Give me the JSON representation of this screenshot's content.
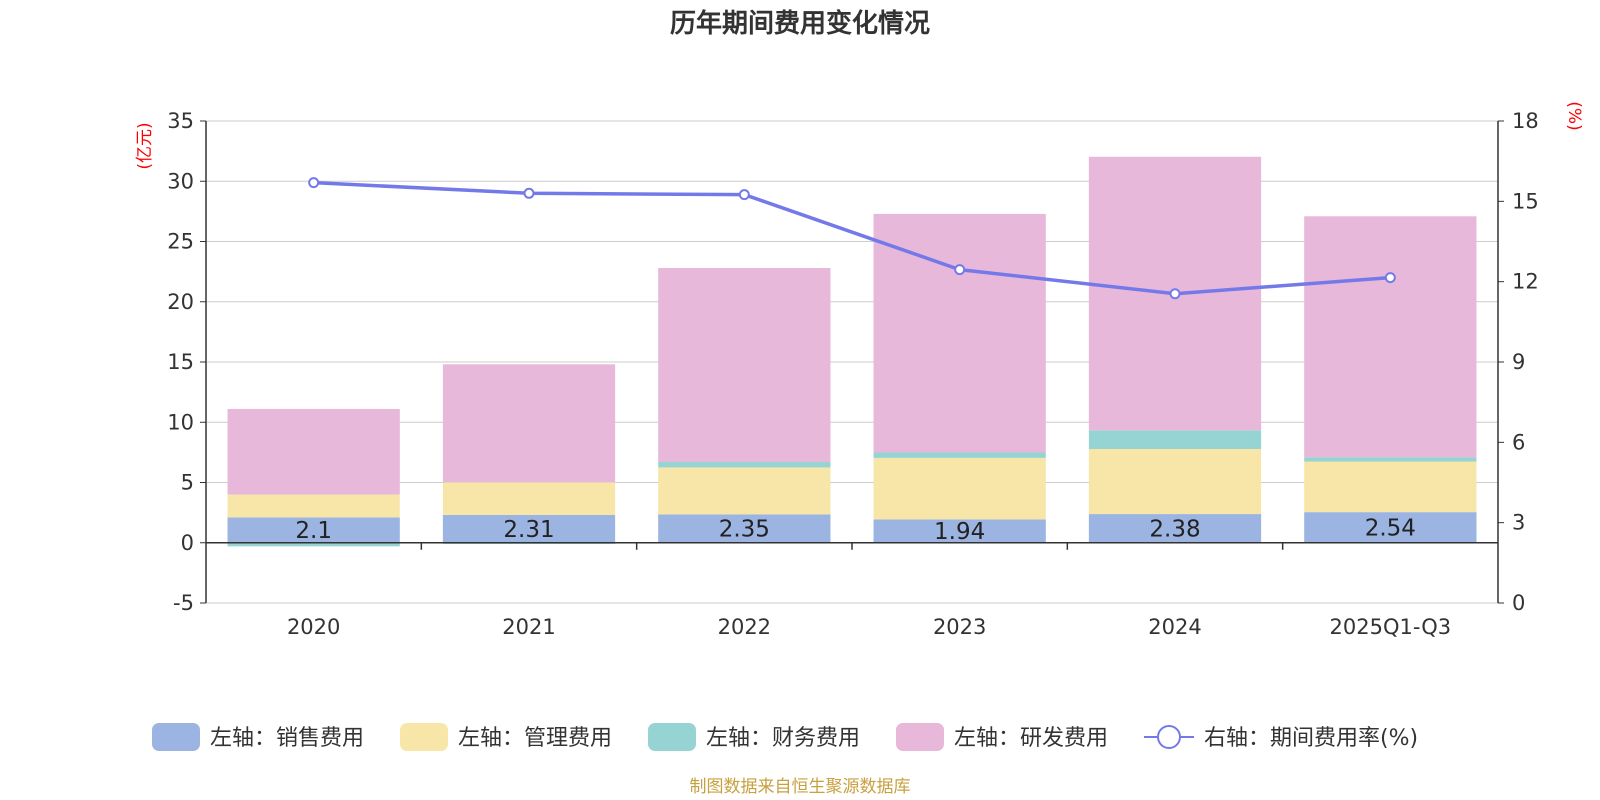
{
  "title": "历年期间费用变化情况",
  "source": "制图数据来自恒生聚源数据库",
  "chart_data": {
    "type": "bar",
    "stacked": true,
    "categories": [
      "2020",
      "2021",
      "2022",
      "2023",
      "2024",
      "2025Q1-Q3"
    ],
    "left_axis": {
      "unit": "(亿元)",
      "min": -5,
      "max": 35,
      "step": 5,
      "ticks": [
        "-5",
        "0",
        "5",
        "10",
        "15",
        "20",
        "25",
        "30",
        "35"
      ]
    },
    "right_axis": {
      "unit": "(%)",
      "min": 0,
      "max": 18,
      "step": 3,
      "ticks": [
        "0",
        "3",
        "6",
        "9",
        "12",
        "15",
        "18"
      ]
    },
    "series": [
      {
        "name": "左轴：销售费用",
        "axis": "left",
        "color": "#9bb4e1",
        "values": [
          2.1,
          2.31,
          2.35,
          1.94,
          2.38,
          2.54
        ],
        "labels": [
          "2.1",
          "2.31",
          "2.35",
          "1.94",
          "2.38",
          "2.54"
        ]
      },
      {
        "name": "左轴：管理费用",
        "axis": "left",
        "color": "#f7e6a8",
        "values": [
          1.9,
          2.7,
          3.9,
          5.1,
          5.4,
          4.2
        ]
      },
      {
        "name": "左轴：财务费用",
        "axis": "left",
        "color": "#96d4d3",
        "values": [
          -0.3,
          -0.1,
          0.45,
          0.45,
          1.55,
          0.35
        ]
      },
      {
        "name": "左轴：研发费用",
        "axis": "left",
        "color": "#e7b8da",
        "values": [
          7.1,
          9.8,
          16.1,
          19.8,
          22.7,
          20.0
        ]
      },
      {
        "name": "右轴：期间费用率(%)",
        "axis": "right",
        "type": "line",
        "color": "#7479ea",
        "values": [
          15.7,
          15.3,
          15.25,
          12.45,
          11.55,
          12.15
        ]
      }
    ]
  }
}
